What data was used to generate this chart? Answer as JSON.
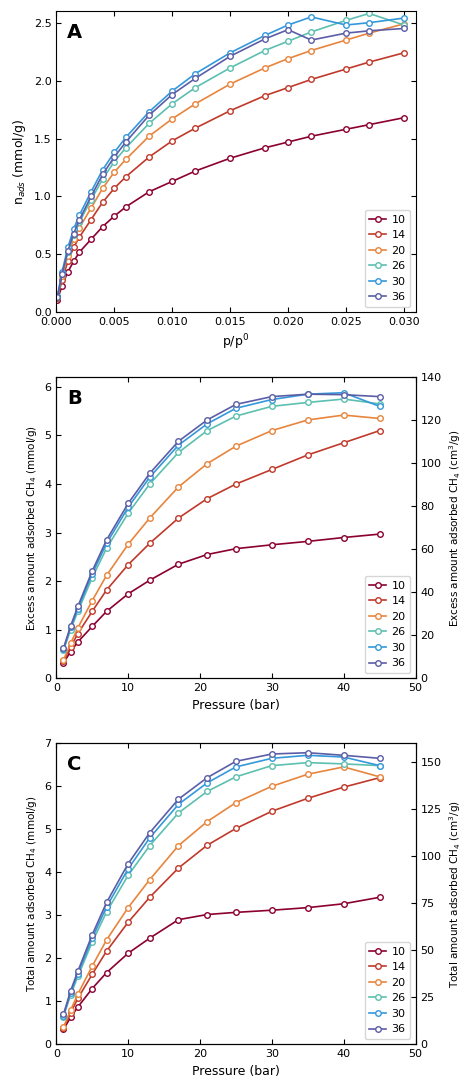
{
  "colors": {
    "10": "#8B0030",
    "14": "#C0392B",
    "20": "#E8853D",
    "26": "#5CBFB0",
    "30": "#3498DB",
    "36": "#5B5EA6"
  },
  "panel_A": {
    "label": "A",
    "xlabel": "p/p^0",
    "ylabel": "n_ads (mmol/g)",
    "ylim": [
      0,
      2.6
    ],
    "xlim": [
      0,
      0.031
    ],
    "series": {
      "10": {
        "x": [
          0.0001,
          0.0005,
          0.001,
          0.0015,
          0.002,
          0.003,
          0.004,
          0.005,
          0.006,
          0.008,
          0.01,
          0.012,
          0.015,
          0.018,
          0.02,
          0.022,
          0.025,
          0.027,
          0.03
        ],
        "y": [
          0.11,
          0.23,
          0.35,
          0.44,
          0.52,
          0.63,
          0.74,
          0.83,
          0.91,
          1.04,
          1.13,
          1.22,
          1.33,
          1.42,
          1.47,
          1.52,
          1.58,
          1.62,
          1.68
        ]
      },
      "14": {
        "x": [
          0.0001,
          0.0005,
          0.001,
          0.0015,
          0.002,
          0.003,
          0.004,
          0.005,
          0.006,
          0.008,
          0.01,
          0.012,
          0.015,
          0.018,
          0.02,
          0.022,
          0.025,
          0.027,
          0.03
        ],
        "y": [
          0.12,
          0.28,
          0.44,
          0.56,
          0.65,
          0.8,
          0.95,
          1.07,
          1.17,
          1.34,
          1.48,
          1.59,
          1.74,
          1.87,
          1.94,
          2.01,
          2.1,
          2.16,
          2.24
        ]
      },
      "20": {
        "x": [
          0.0001,
          0.0005,
          0.001,
          0.0015,
          0.002,
          0.003,
          0.004,
          0.005,
          0.006,
          0.008,
          0.01,
          0.012,
          0.015,
          0.018,
          0.02,
          0.022,
          0.025,
          0.027,
          0.03
        ],
        "y": [
          0.13,
          0.31,
          0.49,
          0.63,
          0.73,
          0.9,
          1.07,
          1.21,
          1.32,
          1.52,
          1.67,
          1.8,
          1.97,
          2.11,
          2.19,
          2.26,
          2.35,
          2.41,
          2.49
        ]
      },
      "26": {
        "x": [
          0.0001,
          0.0005,
          0.001,
          0.0015,
          0.002,
          0.003,
          0.004,
          0.005,
          0.006,
          0.008,
          0.01,
          0.012,
          0.015,
          0.018,
          0.02,
          0.022,
          0.025,
          0.027,
          0.03
        ],
        "y": [
          0.13,
          0.33,
          0.52,
          0.67,
          0.78,
          0.97,
          1.15,
          1.3,
          1.42,
          1.63,
          1.8,
          1.94,
          2.11,
          2.26,
          2.34,
          2.42,
          2.52,
          2.58,
          2.48
        ]
      },
      "30": {
        "x": [
          0.0001,
          0.0005,
          0.001,
          0.0015,
          0.002,
          0.003,
          0.004,
          0.005,
          0.006,
          0.008,
          0.01,
          0.012,
          0.015,
          0.018,
          0.02,
          0.022,
          0.025,
          0.027,
          0.03
        ],
        "y": [
          0.14,
          0.35,
          0.56,
          0.72,
          0.84,
          1.04,
          1.23,
          1.38,
          1.51,
          1.73,
          1.91,
          2.06,
          2.24,
          2.39,
          2.48,
          2.55,
          2.48,
          2.5,
          2.54
        ]
      },
      "36": {
        "x": [
          0.0001,
          0.0005,
          0.001,
          0.0015,
          0.002,
          0.003,
          0.004,
          0.005,
          0.006,
          0.008,
          0.01,
          0.012,
          0.015,
          0.018,
          0.02,
          0.022,
          0.025,
          0.027,
          0.03
        ],
        "y": [
          0.13,
          0.33,
          0.53,
          0.68,
          0.8,
          1.0,
          1.19,
          1.34,
          1.47,
          1.7,
          1.88,
          2.02,
          2.21,
          2.36,
          2.44,
          2.35,
          2.41,
          2.43,
          2.45
        ]
      }
    }
  },
  "panel_B": {
    "label": "B",
    "xlabel": "Pressure (bar)",
    "ylabel_left": "Excess amount adsorbed CH4 (mmol/g)",
    "ylabel_right": "Excess amount adsorbed CH4 (cm3/g)",
    "ylim_left": [
      0,
      6.2
    ],
    "ylim_right": [
      0,
      140
    ],
    "xlim": [
      0,
      50
    ],
    "series": {
      "10": {
        "x": [
          1,
          2,
          3,
          5,
          7,
          10,
          13,
          17,
          21,
          25,
          30,
          35,
          40,
          45
        ],
        "y": [
          0.32,
          0.55,
          0.75,
          1.07,
          1.38,
          1.74,
          2.02,
          2.35,
          2.55,
          2.67,
          2.75,
          2.82,
          2.9,
          2.97
        ]
      },
      "14": {
        "x": [
          1,
          2,
          3,
          5,
          7,
          10,
          13,
          17,
          21,
          25,
          30,
          35,
          40,
          45
        ],
        "y": [
          0.35,
          0.65,
          0.92,
          1.38,
          1.82,
          2.34,
          2.78,
          3.3,
          3.7,
          4.0,
          4.3,
          4.6,
          4.85,
          5.1
        ]
      },
      "20": {
        "x": [
          1,
          2,
          3,
          5,
          7,
          10,
          13,
          17,
          21,
          25,
          30,
          35,
          40,
          45
        ],
        "y": [
          0.38,
          0.72,
          1.04,
          1.6,
          2.12,
          2.76,
          3.3,
          3.94,
          4.42,
          4.78,
          5.1,
          5.32,
          5.42,
          5.35
        ]
      },
      "26": {
        "x": [
          1,
          2,
          3,
          5,
          7,
          10,
          13,
          17,
          21,
          25,
          30,
          35,
          40,
          45
        ],
        "y": [
          0.58,
          1.0,
          1.38,
          2.07,
          2.68,
          3.4,
          4.0,
          4.65,
          5.1,
          5.4,
          5.6,
          5.68,
          5.75,
          5.65
        ]
      },
      "30": {
        "x": [
          1,
          2,
          3,
          5,
          7,
          10,
          13,
          17,
          21,
          25,
          30,
          35,
          40,
          45
        ],
        "y": [
          0.6,
          1.05,
          1.43,
          2.15,
          2.78,
          3.52,
          4.14,
          4.8,
          5.24,
          5.56,
          5.74,
          5.85,
          5.88,
          5.6
        ]
      },
      "36": {
        "x": [
          1,
          2,
          3,
          5,
          7,
          10,
          13,
          17,
          21,
          25,
          30,
          35,
          40,
          45
        ],
        "y": [
          0.62,
          1.08,
          1.48,
          2.21,
          2.85,
          3.6,
          4.22,
          4.88,
          5.32,
          5.64,
          5.8,
          5.85,
          5.84,
          5.8
        ]
      }
    }
  },
  "panel_C": {
    "label": "C",
    "xlabel": "Pressure (bar)",
    "ylabel_left": "Total amount adsorbed CH4 (mmol/g)",
    "ylabel_right": "Total amount adsorbed CH4 (cm3/g)",
    "ylim_left": [
      0,
      7.0
    ],
    "ylim_right": [
      0,
      160
    ],
    "xlim": [
      0,
      50
    ],
    "series": {
      "10": {
        "x": [
          1,
          2,
          3,
          5,
          7,
          10,
          13,
          17,
          21,
          25,
          30,
          35,
          40,
          45
        ],
        "y": [
          0.35,
          0.63,
          0.87,
          1.3,
          1.67,
          2.12,
          2.47,
          2.9,
          3.02,
          3.07,
          3.12,
          3.18,
          3.27,
          3.42
        ]
      },
      "14": {
        "x": [
          1,
          2,
          3,
          5,
          7,
          10,
          13,
          17,
          21,
          25,
          30,
          35,
          40,
          45
        ],
        "y": [
          0.38,
          0.74,
          1.07,
          1.63,
          2.17,
          2.84,
          3.42,
          4.1,
          4.63,
          5.02,
          5.42,
          5.72,
          5.98,
          6.2
        ]
      },
      "20": {
        "x": [
          1,
          2,
          3,
          5,
          7,
          10,
          13,
          17,
          21,
          25,
          30,
          35,
          40,
          45
        ],
        "y": [
          0.4,
          0.8,
          1.17,
          1.82,
          2.43,
          3.18,
          3.83,
          4.62,
          5.18,
          5.62,
          6.0,
          6.28,
          6.45,
          6.22
        ]
      },
      "26": {
        "x": [
          1,
          2,
          3,
          5,
          7,
          10,
          13,
          17,
          21,
          25,
          30,
          35,
          40,
          45
        ],
        "y": [
          0.65,
          1.15,
          1.58,
          2.38,
          3.08,
          3.93,
          4.62,
          5.38,
          5.88,
          6.22,
          6.48,
          6.55,
          6.52,
          6.48
        ]
      },
      "30": {
        "x": [
          1,
          2,
          3,
          5,
          7,
          10,
          13,
          17,
          21,
          25,
          30,
          35,
          40,
          45
        ],
        "y": [
          0.67,
          1.2,
          1.64,
          2.47,
          3.2,
          4.08,
          4.8,
          5.58,
          6.08,
          6.45,
          6.65,
          6.72,
          6.68,
          6.48
        ]
      },
      "36": {
        "x": [
          1,
          2,
          3,
          5,
          7,
          10,
          13,
          17,
          21,
          25,
          30,
          35,
          40,
          45
        ],
        "y": [
          0.7,
          1.25,
          1.7,
          2.55,
          3.3,
          4.2,
          4.92,
          5.7,
          6.2,
          6.58,
          6.75,
          6.78,
          6.72,
          6.65
        ]
      }
    }
  }
}
